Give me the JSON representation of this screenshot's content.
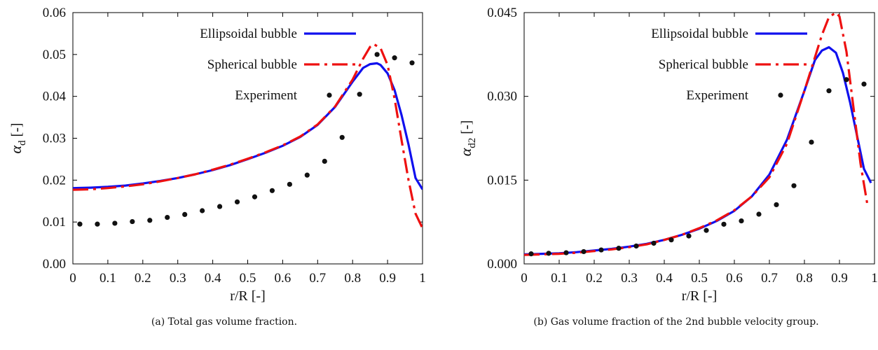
{
  "chart_data": [
    {
      "type": "line",
      "xlabel": "r/R [-]",
      "ylabel_symbol": "α",
      "ylabel_sub": "d",
      "ylabel_unit": "[-]",
      "xlim": [
        0,
        1
      ],
      "ylim": [
        0,
        0.06
      ],
      "xticks": [
        "0",
        "0.1",
        "0.2",
        "0.3",
        "0.4",
        "0.5",
        "0.6",
        "0.7",
        "0.8",
        "0.9",
        "1"
      ],
      "yticks": [
        "0.00",
        "0.01",
        "0.02",
        "0.03",
        "0.04",
        "0.05",
        "0.06"
      ],
      "caption": "(a) Total gas volume fraction.",
      "legend_position": "top-left",
      "series": [
        {
          "name": "Ellipsoidal bubble",
          "style": "solid",
          "color": "#1010ee",
          "x": [
            0,
            0.05,
            0.1,
            0.15,
            0.2,
            0.25,
            0.3,
            0.35,
            0.4,
            0.45,
            0.5,
            0.55,
            0.6,
            0.65,
            0.7,
            0.75,
            0.8,
            0.83,
            0.85,
            0.87,
            0.88,
            0.9,
            0.92,
            0.94,
            0.96,
            0.98,
            1.0
          ],
          "y": [
            0.0181,
            0.0182,
            0.0184,
            0.0187,
            0.0192,
            0.0198,
            0.0205,
            0.0214,
            0.0224,
            0.0236,
            0.025,
            0.0265,
            0.0282,
            0.0303,
            0.0332,
            0.0375,
            0.0435,
            0.0468,
            0.0477,
            0.0479,
            0.0475,
            0.0455,
            0.0415,
            0.0355,
            0.0285,
            0.0205,
            0.0178
          ]
        },
        {
          "name": "Spherical bubble",
          "style": "dashdot",
          "color": "#ee1010",
          "x": [
            0,
            0.05,
            0.1,
            0.15,
            0.2,
            0.25,
            0.3,
            0.35,
            0.4,
            0.45,
            0.5,
            0.55,
            0.6,
            0.65,
            0.7,
            0.75,
            0.8,
            0.83,
            0.85,
            0.86,
            0.88,
            0.9,
            0.92,
            0.94,
            0.96,
            0.98,
            1.0
          ],
          "y": [
            0.0177,
            0.0178,
            0.0181,
            0.0185,
            0.019,
            0.0197,
            0.0205,
            0.0214,
            0.0225,
            0.0237,
            0.0251,
            0.0266,
            0.0283,
            0.0304,
            0.0333,
            0.0376,
            0.044,
            0.049,
            0.0518,
            0.0525,
            0.0515,
            0.0475,
            0.0395,
            0.0295,
            0.02,
            0.012,
            0.0085
          ]
        },
        {
          "name": "Experiment",
          "style": "points",
          "color": "#111111",
          "x": [
            0.02,
            0.07,
            0.12,
            0.17,
            0.22,
            0.27,
            0.32,
            0.37,
            0.42,
            0.47,
            0.52,
            0.57,
            0.62,
            0.67,
            0.72,
            0.77,
            0.82,
            0.87,
            0.92,
            0.97
          ],
          "y": [
            0.0095,
            0.0095,
            0.0097,
            0.0101,
            0.0104,
            0.0111,
            0.0118,
            0.0127,
            0.0137,
            0.0148,
            0.016,
            0.0175,
            0.019,
            0.0212,
            0.0245,
            0.0302,
            0.0405,
            0.05,
            0.0492,
            0.048
          ]
        }
      ]
    },
    {
      "type": "line",
      "xlabel": "r/R [-]",
      "ylabel_symbol": "α",
      "ylabel_sub": "d2",
      "ylabel_unit": "[-]",
      "xlim": [
        0,
        1
      ],
      "ylim": [
        0,
        0.045
      ],
      "xticks": [
        "0",
        "0.1",
        "0.2",
        "0.3",
        "0.4",
        "0.5",
        "0.6",
        "0.7",
        "0.8",
        "0.9",
        "1"
      ],
      "yticks": [
        "0.000",
        "0.015",
        "0.030",
        "0.045"
      ],
      "caption": "(b) Gas volume fraction of the 2nd bubble velocity group.",
      "legend_position": "top-left",
      "series": [
        {
          "name": "Ellipsoidal bubble",
          "style": "solid",
          "color": "#1010ee",
          "x": [
            0,
            0.05,
            0.1,
            0.15,
            0.2,
            0.25,
            0.3,
            0.35,
            0.4,
            0.45,
            0.5,
            0.55,
            0.6,
            0.65,
            0.7,
            0.75,
            0.8,
            0.83,
            0.85,
            0.87,
            0.89,
            0.91,
            0.93,
            0.95,
            0.97,
            0.99
          ],
          "y": [
            0.0017,
            0.0018,
            0.0019,
            0.0021,
            0.0024,
            0.0027,
            0.0031,
            0.0036,
            0.0043,
            0.0052,
            0.0063,
            0.0077,
            0.0095,
            0.0121,
            0.016,
            0.0222,
            0.031,
            0.0365,
            0.0382,
            0.0388,
            0.0378,
            0.0342,
            0.029,
            0.023,
            0.017,
            0.0145
          ]
        },
        {
          "name": "Spherical bubble",
          "style": "dashdot",
          "color": "#ee1010",
          "x": [
            0,
            0.05,
            0.1,
            0.15,
            0.2,
            0.25,
            0.3,
            0.35,
            0.4,
            0.45,
            0.5,
            0.55,
            0.6,
            0.65,
            0.7,
            0.75,
            0.8,
            0.83,
            0.85,
            0.87,
            0.89,
            0.9,
            0.92,
            0.94,
            0.96,
            0.98
          ],
          "y": [
            0.0016,
            0.0017,
            0.0018,
            0.002,
            0.0023,
            0.0026,
            0.003,
            0.0035,
            0.0043,
            0.0052,
            0.0064,
            0.0078,
            0.0096,
            0.0121,
            0.0155,
            0.0215,
            0.031,
            0.037,
            0.041,
            0.0442,
            0.045,
            0.0443,
            0.038,
            0.028,
            0.018,
            0.0105
          ]
        },
        {
          "name": "Experiment",
          "style": "points",
          "color": "#111111",
          "x": [
            0.02,
            0.07,
            0.12,
            0.17,
            0.22,
            0.27,
            0.32,
            0.37,
            0.42,
            0.47,
            0.52,
            0.57,
            0.62,
            0.67,
            0.72,
            0.77,
            0.82,
            0.87,
            0.92,
            0.97
          ],
          "y": [
            0.0018,
            0.0019,
            0.002,
            0.0022,
            0.0025,
            0.0028,
            0.0032,
            0.0037,
            0.0043,
            0.005,
            0.006,
            0.0071,
            0.0077,
            0.0089,
            0.0106,
            0.014,
            0.0218,
            0.031,
            0.033,
            0.0322
          ]
        }
      ]
    }
  ]
}
